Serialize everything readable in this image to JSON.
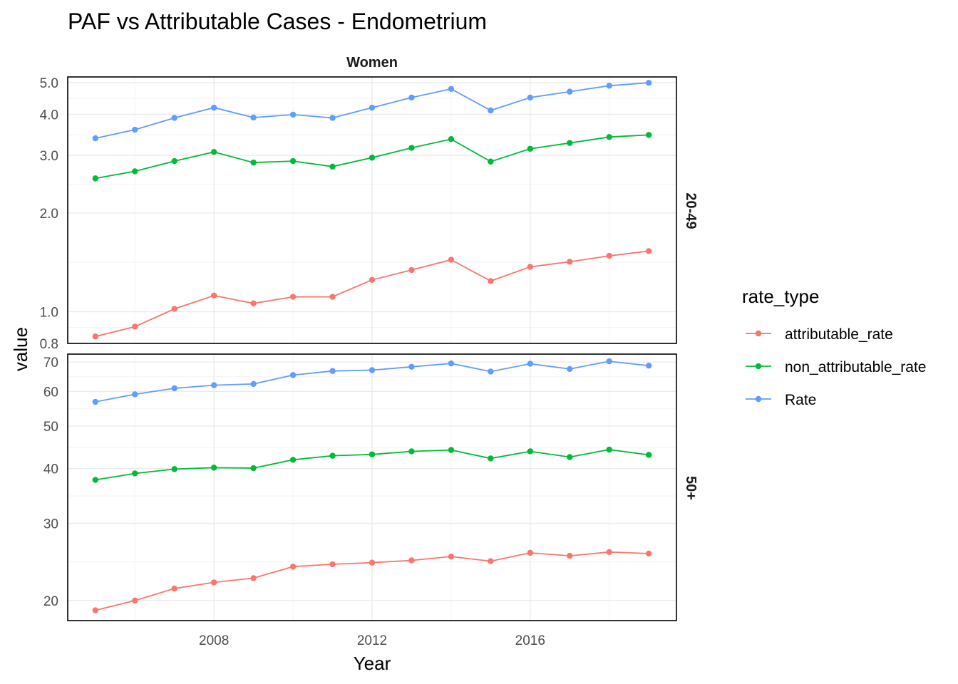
{
  "chart_data": {
    "type": "line",
    "title": "PAF vs Attributable Cases - Endometrium",
    "facet_column": "Women",
    "xlabel": "Year",
    "ylabel": "value",
    "x_ticks": [
      2008,
      2012,
      2016
    ],
    "x": [
      2005,
      2006,
      2007,
      2008,
      2009,
      2010,
      2011,
      2012,
      2013,
      2014,
      2015,
      2016,
      2017,
      2018,
      2019
    ],
    "y_scale": "log",
    "grid": true,
    "legend": {
      "title": "rate_type",
      "position": "right",
      "entries": [
        "attributable_rate",
        "non_attributable_rate",
        "Rate"
      ]
    },
    "colors": {
      "attributable_rate": "#F8766D",
      "non_attributable_rate": "#00BA38",
      "Rate": "#619CFF"
    },
    "panels": [
      {
        "strip": "20-49",
        "ylim": [
          0.8,
          5.2
        ],
        "y_ticks": [
          "0.8",
          "1.0",
          "2.0",
          "3.0",
          "4.0",
          "5.0"
        ],
        "y_tick_values": [
          0.8,
          1.0,
          2.0,
          3.0,
          4.0,
          5.0
        ],
        "series": [
          {
            "name": "attributable_rate",
            "values": [
              0.84,
              0.9,
              1.02,
              1.12,
              1.06,
              1.11,
              1.11,
              1.25,
              1.34,
              1.44,
              1.24,
              1.37,
              1.42,
              1.48,
              1.53
            ]
          },
          {
            "name": "non_attributable_rate",
            "values": [
              2.55,
              2.68,
              2.88,
              3.07,
              2.85,
              2.88,
              2.77,
              2.95,
              3.16,
              3.36,
              2.87,
              3.14,
              3.27,
              3.41,
              3.46
            ]
          },
          {
            "name": "Rate",
            "values": [
              3.38,
              3.59,
              3.9,
              4.19,
              3.91,
              3.99,
              3.9,
              4.19,
              4.5,
              4.78,
              4.11,
              4.5,
              4.69,
              4.89,
              4.99
            ]
          }
        ]
      },
      {
        "strip": "50+",
        "ylim": [
          18.0,
          73.0
        ],
        "y_ticks": [
          "20",
          "30",
          "40",
          "50",
          "60",
          "70"
        ],
        "y_tick_values": [
          20,
          30,
          40,
          50,
          60,
          70
        ],
        "series": [
          {
            "name": "attributable_rate",
            "values": [
              19.0,
              20.0,
              21.3,
              22.0,
              22.5,
              23.9,
              24.2,
              24.4,
              24.7,
              25.2,
              24.6,
              25.7,
              25.3,
              25.8,
              25.6
            ]
          },
          {
            "name": "non_attributable_rate",
            "values": [
              37.7,
              39.0,
              39.9,
              40.2,
              40.1,
              41.9,
              42.8,
              43.1,
              43.8,
              44.1,
              42.2,
              43.8,
              42.5,
              44.2,
              43.0
            ]
          },
          {
            "name": "Rate",
            "values": [
              56.8,
              59.1,
              61.0,
              62.0,
              62.4,
              65.4,
              66.8,
              67.1,
              68.3,
              69.5,
              66.6,
              69.4,
              67.5,
              70.3,
              68.7
            ]
          }
        ]
      }
    ]
  }
}
